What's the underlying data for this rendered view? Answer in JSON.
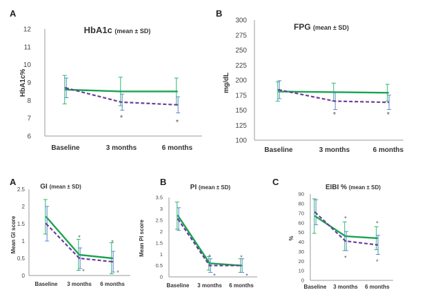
{
  "colors": {
    "series_a": "#19a351",
    "series_b": "#6a3d9a",
    "err_a": "#2bb673",
    "err_b": "#5a87c9",
    "axis": "#9a9a9a"
  },
  "chart_data": [
    {
      "id": "hba1c",
      "type": "line",
      "panel_label": "A",
      "title": "HbA1c",
      "title_note": "(mean ± SD)",
      "ylabel": "HbA1c%",
      "xlabel": "",
      "categories": [
        "Baseline",
        "3 months",
        "6 months"
      ],
      "ylim": [
        6,
        12
      ],
      "yticks": [
        "6",
        "7",
        "8",
        "9",
        "10",
        "11",
        "12"
      ],
      "grid": false,
      "series": [
        {
          "values": [
            8.6,
            8.5,
            8.5
          ],
          "sd": [
            0.8,
            0.8,
            0.75
          ],
          "style": "solid"
        },
        {
          "values": [
            8.7,
            7.9,
            7.75
          ],
          "sd": [
            0.55,
            0.45,
            0.45
          ],
          "style": "dashed"
        }
      ],
      "annotations": [
        {
          "category": "3 months",
          "value": 7.05,
          "text": "*"
        },
        {
          "category": "6 months",
          "value": 6.8,
          "text": "*"
        }
      ]
    },
    {
      "id": "fpg",
      "type": "line",
      "panel_label": "B",
      "title": "FPG",
      "title_note": "(mean ± SD)",
      "ylabel": "mg/dL",
      "xlabel": "",
      "categories": [
        "Baseline",
        "3 months",
        "6 months"
      ],
      "ylim": [
        100,
        300
      ],
      "yticks": [
        "100",
        "125",
        "150",
        "175",
        "200",
        "225",
        "250",
        "275",
        "300"
      ],
      "grid": false,
      "series": [
        {
          "values": [
            181,
            180,
            179
          ],
          "sd": [
            16,
            15,
            14
          ],
          "style": "solid"
        },
        {
          "values": [
            184,
            165,
            163
          ],
          "sd": [
            15,
            14,
            12
          ],
          "style": "dashed"
        }
      ],
      "annotations": [
        {
          "category": "3 months",
          "value": 143,
          "text": "*"
        },
        {
          "category": "6 months",
          "value": 143,
          "text": "*"
        }
      ]
    },
    {
      "id": "gi",
      "type": "line",
      "panel_label": "A",
      "title": "GI",
      "title_note": "(mean ± SD)",
      "ylabel": "Mean GI score",
      "xlabel": "",
      "categories": [
        "Baseline",
        "3 months",
        "6 months"
      ],
      "ylim": [
        0,
        2.5
      ],
      "yticks": [
        "0",
        "0.5",
        "1",
        "1.5",
        "2",
        "2.5"
      ],
      "grid": false,
      "series": [
        {
          "values": [
            1.7,
            0.6,
            0.5
          ],
          "sd": [
            0.5,
            0.45,
            0.45
          ],
          "style": "solid"
        },
        {
          "values": [
            1.5,
            0.5,
            0.4
          ],
          "sd": [
            0.5,
            0.3,
            0.3
          ],
          "style": "dashed"
        }
      ],
      "annotations": [
        {
          "category": "3 months",
          "value": 1.12,
          "text": "*"
        },
        {
          "category": "3 months",
          "value": 0.14,
          "text": "*",
          "dx": 6
        },
        {
          "category": "6 months",
          "value": 0.98,
          "text": "*"
        },
        {
          "category": "6 months",
          "value": 0.1,
          "text": "*",
          "dx": 8
        }
      ]
    },
    {
      "id": "pi",
      "type": "line",
      "panel_label": "B",
      "title": "PI",
      "title_note": "(mean ± SD)",
      "ylabel": "Mean PI score",
      "xlabel": "",
      "categories": [
        "Baseline",
        "3 months",
        "6 months"
      ],
      "ylim": [
        0,
        3.5
      ],
      "yticks": [
        "0",
        "0.5",
        "1",
        "1.5",
        "2",
        "2.5",
        "3",
        "3.5"
      ],
      "grid": false,
      "series": [
        {
          "values": [
            2.7,
            0.6,
            0.5
          ],
          "sd": [
            0.6,
            0.3,
            0.3
          ],
          "style": "solid"
        },
        {
          "values": [
            2.55,
            0.5,
            0.5
          ],
          "sd": [
            0.5,
            0.3,
            0.3
          ],
          "style": "dashed"
        }
      ],
      "annotations": [
        {
          "category": "3 months",
          "value": 0.92,
          "text": "*"
        },
        {
          "category": "3 months",
          "value": 0.08,
          "text": "*",
          "dx": 7
        },
        {
          "category": "6 months",
          "value": 0.88,
          "text": "*"
        },
        {
          "category": "6 months",
          "value": 0.08,
          "text": "*",
          "dx": 8
        }
      ]
    },
    {
      "id": "eibi",
      "type": "line",
      "panel_label": "C",
      "title": "EIBI %",
      "title_note": "(mean ± SD)",
      "ylabel": "%",
      "xlabel": "",
      "categories": [
        "Baseline",
        "3 months",
        "6 months"
      ],
      "ylim": [
        0,
        90
      ],
      "yticks": [
        "0",
        "10",
        "20",
        "30",
        "40",
        "50",
        "60",
        "70",
        "80",
        "90"
      ],
      "grid": false,
      "series": [
        {
          "values": [
            67,
            46,
            44
          ],
          "sd": [
            18,
            15,
            12
          ],
          "style": "solid"
        },
        {
          "values": [
            71,
            41,
            37
          ],
          "sd": [
            13,
            10,
            10
          ],
          "style": "dashed"
        }
      ],
      "annotations": [
        {
          "category": "3 months",
          "value": 65,
          "text": "*"
        },
        {
          "category": "3 months",
          "value": 24,
          "text": "*"
        },
        {
          "category": "6 months",
          "value": 60,
          "text": "*"
        },
        {
          "category": "6 months",
          "value": 20,
          "text": "*"
        }
      ]
    }
  ]
}
